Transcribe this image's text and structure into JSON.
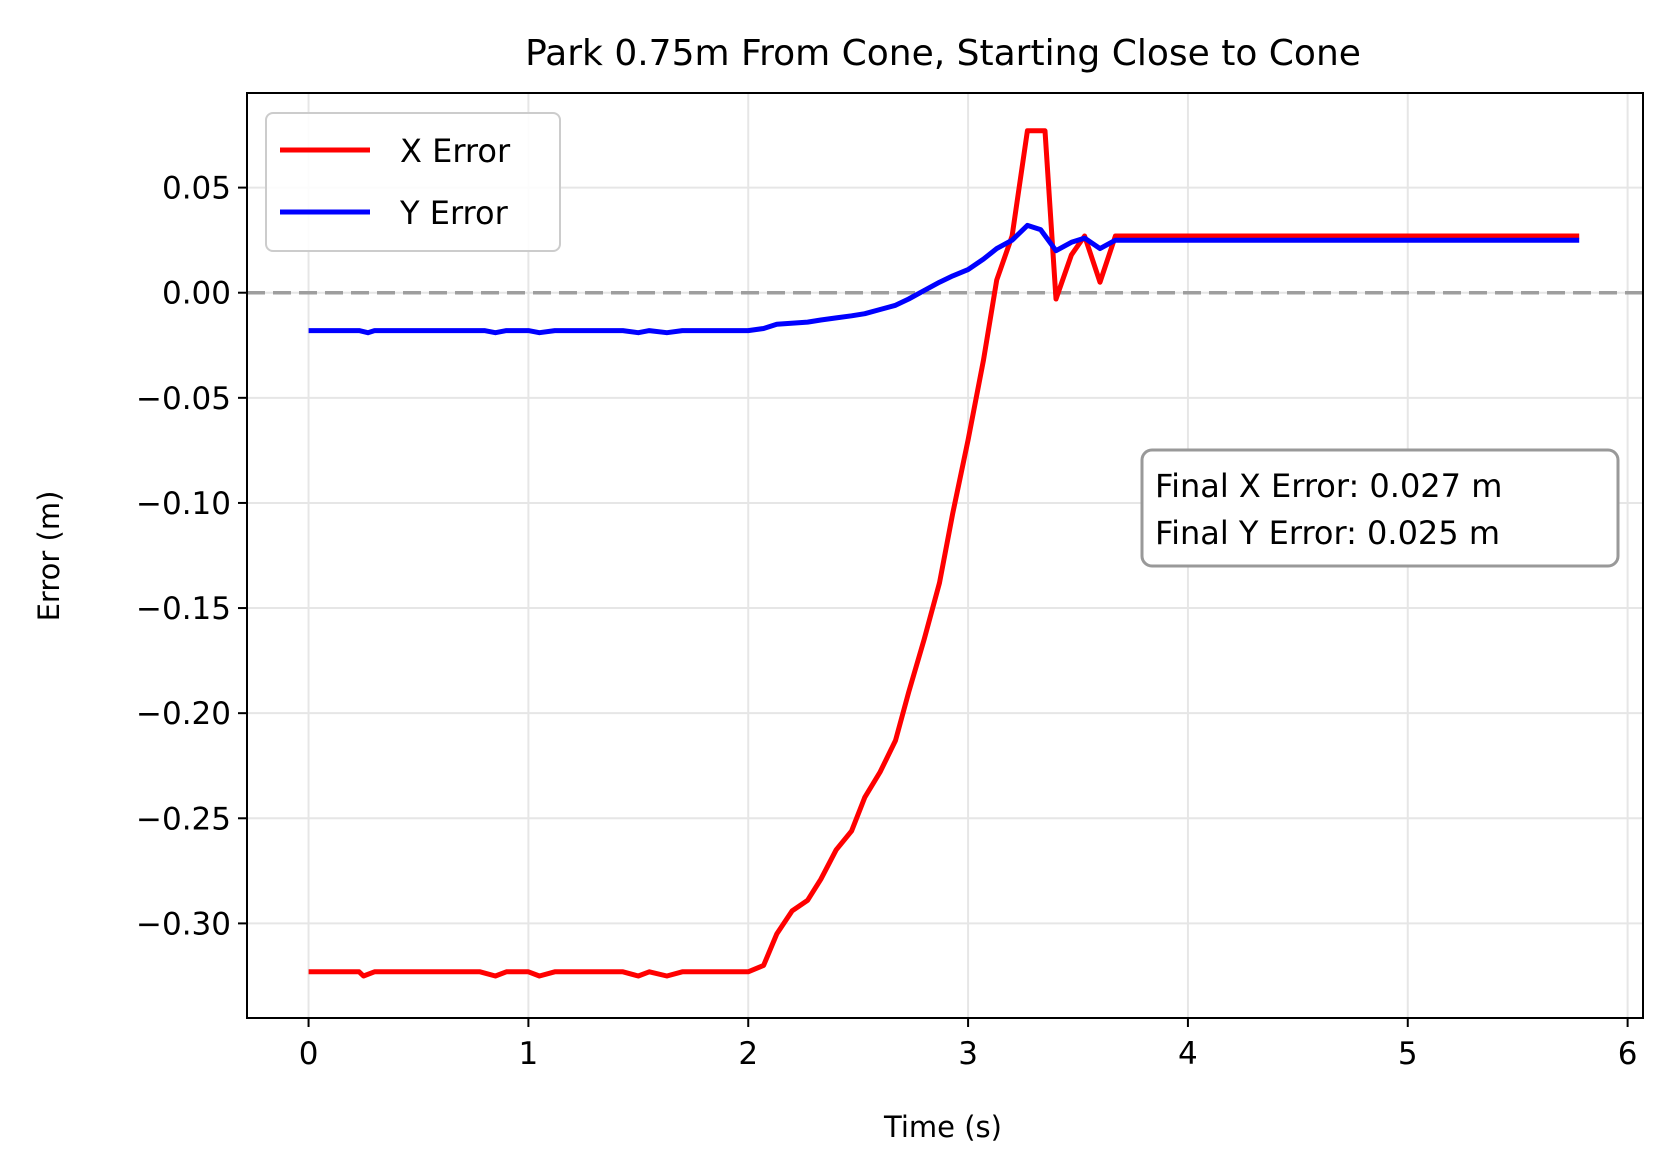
{
  "chart_data": {
    "type": "line",
    "title": "Park 0.75m From Cone, Starting Close to Cone",
    "xlabel": "Time (s)",
    "ylabel": "Error (m)",
    "xlim": [
      -0.28,
      6.07
    ],
    "ylim": [
      -0.345,
      0.095
    ],
    "xticks": [
      0,
      1,
      2,
      3,
      4,
      5,
      6
    ],
    "xtick_labels": [
      "0",
      "1",
      "2",
      "3",
      "4",
      "5",
      "6"
    ],
    "yticks": [
      0.05,
      0.0,
      -0.05,
      -0.1,
      -0.15,
      -0.2,
      -0.25,
      -0.3
    ],
    "ytick_labels": [
      "0.05",
      "0.00",
      "−0.05",
      "−0.10",
      "−0.15",
      "−0.20",
      "−0.25",
      "−0.30"
    ],
    "grid": true,
    "legend_position": "top-left",
    "reference_line": {
      "y": 0.0,
      "style": "dashed",
      "color": "#9e9e9e"
    },
    "annotation": {
      "position": "right-middle",
      "lines": [
        "Final X Error: 0.027 m",
        "Final Y Error: 0.025 m"
      ]
    },
    "series": [
      {
        "name": "X Error",
        "color": "#ff0000",
        "x": [
          0,
          0.23,
          0.25,
          0.3,
          0.78,
          0.85,
          0.9,
          1.0,
          1.05,
          1.12,
          1.43,
          1.5,
          1.55,
          1.63,
          1.7,
          2.0,
          2.07,
          2.13,
          2.2,
          2.27,
          2.33,
          2.4,
          2.47,
          2.53,
          2.6,
          2.67,
          2.73,
          2.8,
          2.87,
          2.93,
          3.0,
          3.07,
          3.13,
          3.2,
          3.27,
          3.3,
          3.35,
          3.4,
          3.47,
          3.53,
          3.6,
          3.67,
          3.75,
          5.78
        ],
        "values": [
          -0.323,
          -0.323,
          -0.325,
          -0.323,
          -0.323,
          -0.325,
          -0.323,
          -0.323,
          -0.325,
          -0.323,
          -0.323,
          -0.325,
          -0.323,
          -0.325,
          -0.323,
          -0.323,
          -0.32,
          -0.305,
          -0.294,
          -0.289,
          -0.279,
          -0.265,
          -0.256,
          -0.24,
          -0.228,
          -0.213,
          -0.19,
          -0.165,
          -0.138,
          -0.105,
          -0.07,
          -0.032,
          0.006,
          0.027,
          0.077,
          0.077,
          0.077,
          -0.003,
          0.018,
          0.027,
          0.005,
          0.027,
          0.027,
          0.027
        ]
      },
      {
        "name": "Y Error",
        "color": "#0000ff",
        "x": [
          0,
          0.23,
          0.27,
          0.3,
          0.8,
          0.85,
          0.9,
          1.0,
          1.05,
          1.12,
          1.43,
          1.5,
          1.55,
          1.63,
          1.7,
          2.0,
          2.07,
          2.13,
          2.27,
          2.33,
          2.4,
          2.47,
          2.53,
          2.6,
          2.67,
          2.73,
          2.8,
          2.87,
          2.93,
          3.0,
          3.07,
          3.13,
          3.2,
          3.27,
          3.33,
          3.4,
          3.47,
          3.53,
          3.6,
          3.67,
          3.75,
          5.78
        ],
        "values": [
          -0.018,
          -0.018,
          -0.019,
          -0.018,
          -0.018,
          -0.019,
          -0.018,
          -0.018,
          -0.019,
          -0.018,
          -0.018,
          -0.019,
          -0.018,
          -0.019,
          -0.018,
          -0.018,
          -0.017,
          -0.015,
          -0.014,
          -0.013,
          -0.012,
          -0.011,
          -0.01,
          -0.008,
          -0.006,
          -0.003,
          0.001,
          0.005,
          0.008,
          0.011,
          0.016,
          0.021,
          0.025,
          0.032,
          0.03,
          0.02,
          0.024,
          0.026,
          0.021,
          0.025,
          0.025,
          0.025
        ]
      }
    ]
  }
}
